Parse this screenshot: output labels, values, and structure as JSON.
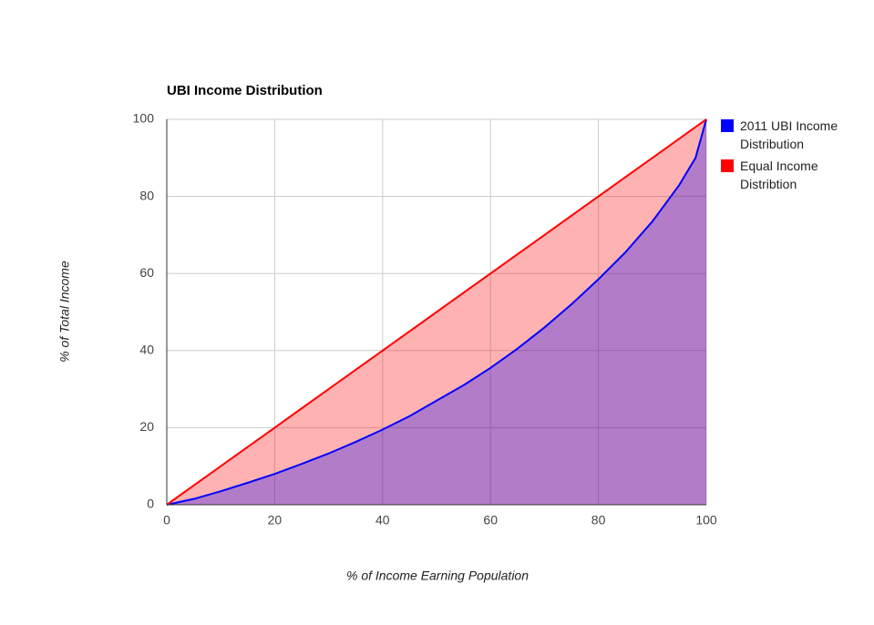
{
  "chart_data": {
    "type": "area",
    "title": "UBI Income Distribution",
    "x_label": "% of Income Earning Population",
    "y_label": "% of Total Income",
    "x": [
      0,
      5,
      10,
      15,
      20,
      25,
      30,
      35,
      40,
      45,
      50,
      55,
      60,
      65,
      70,
      75,
      80,
      85,
      90,
      95,
      98,
      100
    ],
    "series": [
      {
        "name": "2011 UBI Income Distribution",
        "color": "#0000ff",
        "values": [
          0,
          1.5,
          3.5,
          5.7,
          8,
          10.6,
          13.3,
          16.3,
          19.5,
          23,
          27,
          31,
          35.5,
          40.5,
          46,
          52,
          58.5,
          65.5,
          73.5,
          83,
          90,
          100
        ]
      },
      {
        "name": "Equal Income Distribtion",
        "color": "#ff0000",
        "values": [
          0,
          5,
          10,
          15,
          20,
          25,
          30,
          35,
          40,
          45,
          50,
          55,
          60,
          65,
          70,
          75,
          80,
          85,
          90,
          95,
          98,
          100
        ]
      }
    ],
    "xlim": [
      0,
      100
    ],
    "xticks": [
      0,
      20,
      40,
      60,
      80,
      100
    ],
    "ylim": [
      0,
      100
    ],
    "yticks": [
      0,
      20,
      40,
      60,
      80,
      100
    ],
    "grid": true,
    "legend": "right"
  }
}
